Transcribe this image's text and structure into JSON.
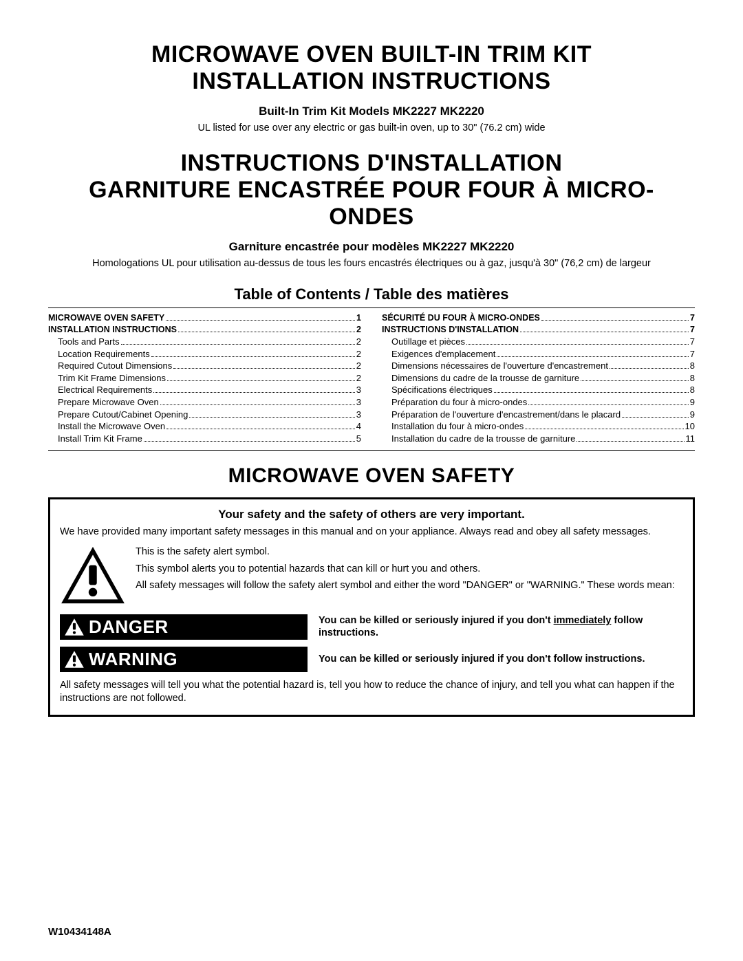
{
  "title_en_line1": "MICROWAVE OVEN BUILT-IN TRIM KIT",
  "title_en_line2": "INSTALLATION INSTRUCTIONS",
  "subtitle_en": "Built-In Trim Kit Models  MK2227 MK2220",
  "ul_note_en": "UL listed for use over any electric or gas built-in oven, up to 30\" (76.2 cm) wide",
  "title_fr_line1": "INSTRUCTIONS D'INSTALLATION",
  "title_fr_line2": "GARNITURE ENCASTRÉE POUR FOUR À MICRO-ONDES",
  "subtitle_fr": "Garniture encastrée pour modèles  MK2227 MK2220",
  "ul_note_fr": "Homologations UL pour utilisation au-dessus de tous les fours encastrés électriques ou à gaz, jusqu'à 30\" (76,2 cm) de largeur",
  "toc_heading": "Table of Contents / Table des matières",
  "toc_left": [
    {
      "label": "MICROWAVE OVEN SAFETY",
      "page": "1",
      "bold": true
    },
    {
      "label": "INSTALLATION INSTRUCTIONS",
      "page": "2",
      "bold": true
    },
    {
      "label": "Tools and Parts",
      "page": "2",
      "sub": true
    },
    {
      "label": "Location Requirements",
      "page": "2",
      "sub": true
    },
    {
      "label": "Required Cutout Dimensions",
      "page": "2",
      "sub": true
    },
    {
      "label": "Trim Kit Frame Dimensions",
      "page": "2",
      "sub": true
    },
    {
      "label": "Electrical Requirements",
      "page": "3",
      "sub": true
    },
    {
      "label": "Prepare Microwave Oven",
      "page": "3",
      "sub": true
    },
    {
      "label": "Prepare Cutout/Cabinet Opening",
      "page": "3",
      "sub": true
    },
    {
      "label": "Install the Microwave Oven",
      "page": "4",
      "sub": true
    },
    {
      "label": "Install Trim Kit Frame",
      "page": "5",
      "sub": true
    }
  ],
  "toc_right": [
    {
      "label": "SÉCURITÉ DU FOUR À MICRO-ONDES",
      "page": "7",
      "bold": true
    },
    {
      "label": "INSTRUCTIONS D'INSTALLATION",
      "page": "7",
      "bold": true
    },
    {
      "label": "Outillage et pièces",
      "page": "7",
      "sub": true
    },
    {
      "label": "Exigences d'emplacement",
      "page": "7",
      "sub": true
    },
    {
      "label": "Dimensions nécessaires de l'ouverture d'encastrement",
      "page": "8",
      "sub": true
    },
    {
      "label": "Dimensions du cadre de la trousse de garniture",
      "page": "8",
      "sub": true
    },
    {
      "label": "Spécifications électriques",
      "page": "8",
      "sub": true
    },
    {
      "label": "Préparation du four à micro-ondes",
      "page": "9",
      "sub": true
    },
    {
      "label": "Préparation de l'ouverture d'encastrement/dans le placard",
      "page": "9",
      "sub": true
    },
    {
      "label": "Installation du four à micro-ondes",
      "page": "10",
      "sub": true
    },
    {
      "label": "Installation du cadre de la trousse de garniture",
      "page": "11",
      "sub": true
    }
  ],
  "safety_heading": "MICROWAVE OVEN SAFETY",
  "safety_intro_bold": "Your safety and the safety of others are very important.",
  "safety_intro": "We have provided many important safety messages in this manual and on your appliance. Always read and obey all safety messages.",
  "symbol_text_1": "This is the safety alert symbol.",
  "symbol_text_2": "This symbol alerts you to potential hazards that can kill or hurt you and others.",
  "symbol_text_3": "All safety messages will follow the safety alert symbol and either the word \"DANGER\" or \"WARNING.\" These words mean:",
  "danger_label": "DANGER",
  "danger_desc_1": "You can be killed or seriously injured if you don't ",
  "danger_desc_underline": "immediately",
  "danger_desc_2": " follow instructions.",
  "warning_label": "WARNING",
  "warning_desc": "You can be killed or seriously injured if you don't follow instructions.",
  "safety_outro": "All safety messages will tell you what the potential hazard is, tell you how to reduce the chance of injury, and tell you what can happen if the instructions are not followed.",
  "doc_number": "W10434148A"
}
